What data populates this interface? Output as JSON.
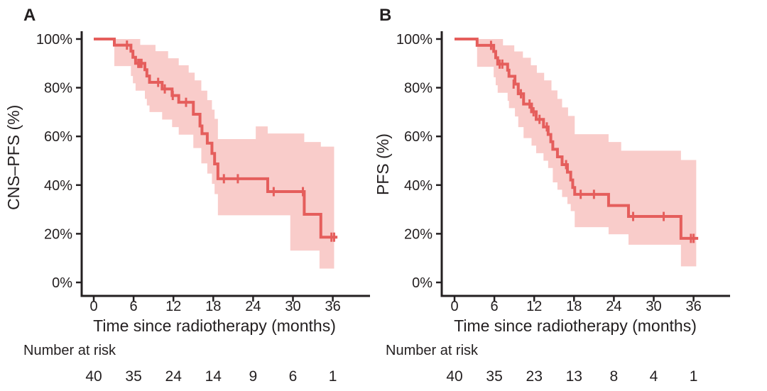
{
  "figure": {
    "background": "#ffffff",
    "colors": {
      "curve": "#E55E5C",
      "ci_band": "#F9CCCA",
      "text": "#231F20",
      "axis": "#231F20"
    }
  },
  "panels": [
    {
      "letter": "A",
      "y_label": "CNS–PFS (%)",
      "x_label": "Time since radiotherapy (months)",
      "risk_label": "Number at risk"
    },
    {
      "letter": "B",
      "y_label": "PFS (%)",
      "x_label": "Time since radiotherapy (months)",
      "risk_label": "Number at risk"
    }
  ],
  "chart_data": [
    {
      "type": "line",
      "subtype": "kaplan-meier-step",
      "panel": "A",
      "title": "",
      "ylabel": "CNS–PFS (%)",
      "xlabel": "Time since radiotherapy (months)",
      "xlim": [
        0,
        38.5
      ],
      "ylim": [
        0,
        100
      ],
      "grid": false,
      "legend": "none",
      "x_ticks": [
        0,
        6,
        12,
        18,
        24,
        30,
        36
      ],
      "y_ticks": [
        100,
        80,
        60,
        40,
        20,
        0
      ],
      "y_tick_labels": [
        "100%",
        "80%",
        "60%",
        "40%",
        "20%",
        "0%"
      ],
      "steps": [
        [
          0,
          100
        ],
        [
          3.1,
          97.5
        ],
        [
          5.6,
          95.0
        ],
        [
          5.9,
          92.5
        ],
        [
          6.3,
          90.0
        ],
        [
          7.7,
          87.4
        ],
        [
          8.0,
          84.8
        ],
        [
          8.4,
          82.2
        ],
        [
          10.3,
          79.5
        ],
        [
          11.8,
          76.8
        ],
        [
          12.8,
          74.0
        ],
        [
          15.0,
          69.1
        ],
        [
          16.0,
          64.3
        ],
        [
          16.3,
          61.1
        ],
        [
          17.1,
          57.2
        ],
        [
          17.8,
          53.0
        ],
        [
          18.2,
          48.7
        ],
        [
          18.7,
          42.6
        ],
        [
          26.2,
          37.3
        ],
        [
          31.7,
          28.0
        ],
        [
          34.2,
          18.6
        ]
      ],
      "end_time": 36.7,
      "censor_marks": [
        [
          5.0,
          97.5
        ],
        [
          6.7,
          90.0
        ],
        [
          6.95,
          90.0
        ],
        [
          7.2,
          90.0
        ],
        [
          9.7,
          82.2
        ],
        [
          10.7,
          79.5
        ],
        [
          11.9,
          76.8
        ],
        [
          13.9,
          74.0
        ],
        [
          19.6,
          42.6
        ],
        [
          21.7,
          42.6
        ],
        [
          27.1,
          37.3
        ],
        [
          31.5,
          37.3
        ],
        [
          35.8,
          18.6
        ],
        [
          36.2,
          18.6
        ]
      ],
      "ci_upper": [
        [
          0,
          100
        ],
        [
          7.0,
          97.6
        ],
        [
          9.3,
          95.0
        ],
        [
          11.2,
          92.1
        ],
        [
          12.8,
          89.2
        ],
        [
          14.3,
          86.2
        ],
        [
          15.2,
          83.0
        ],
        [
          16.2,
          78.8
        ],
        [
          17.1,
          74.9
        ],
        [
          17.8,
          71.0
        ],
        [
          18.2,
          67.2
        ],
        [
          18.7,
          58.9
        ],
        [
          24.4,
          64.1
        ],
        [
          26.2,
          61.2
        ],
        [
          31.7,
          57.7
        ],
        [
          34.2,
          55.8
        ]
      ],
      "ci_lower": [
        [
          0,
          100
        ],
        [
          3.1,
          88.9
        ],
        [
          5.6,
          84.8
        ],
        [
          5.9,
          81.8
        ],
        [
          6.3,
          78.8
        ],
        [
          7.7,
          75.4
        ],
        [
          8.0,
          72.7
        ],
        [
          8.4,
          70.0
        ],
        [
          10.3,
          66.9
        ],
        [
          11.8,
          63.8
        ],
        [
          12.8,
          60.7
        ],
        [
          15.0,
          55.2
        ],
        [
          16.2,
          48.9
        ],
        [
          17.1,
          44.7
        ],
        [
          17.8,
          40.5
        ],
        [
          18.2,
          36.3
        ],
        [
          18.7,
          27.6
        ],
        [
          29.6,
          13.1
        ],
        [
          34.0,
          5.7
        ]
      ],
      "ci_end_time": 36.2,
      "number_at_risk": {
        "times": [
          0,
          6,
          12,
          18,
          24,
          30,
          36
        ],
        "counts": [
          40,
          35,
          24,
          14,
          9,
          6,
          1
        ]
      }
    },
    {
      "type": "line",
      "subtype": "kaplan-meier-step",
      "panel": "B",
      "title": "",
      "ylabel": "PFS (%)",
      "xlabel": "Time since radiotherapy (months)",
      "xlim": [
        0,
        38.5
      ],
      "ylim": [
        0,
        100
      ],
      "grid": false,
      "legend": "none",
      "x_ticks": [
        0,
        6,
        12,
        18,
        24,
        30,
        36
      ],
      "y_ticks": [
        100,
        80,
        60,
        40,
        20,
        0
      ],
      "y_tick_labels": [
        "100%",
        "80%",
        "60%",
        "40%",
        "20%",
        "0%"
      ],
      "steps": [
        [
          0,
          100
        ],
        [
          3.4,
          97.4
        ],
        [
          5.9,
          94.9
        ],
        [
          6.2,
          92.3
        ],
        [
          6.5,
          89.7
        ],
        [
          8.0,
          87.2
        ],
        [
          8.2,
          84.7
        ],
        [
          9.1,
          81.5
        ],
        [
          9.6,
          77.5
        ],
        [
          10.4,
          73.3
        ],
        [
          11.6,
          70.1
        ],
        [
          12.3,
          67.0
        ],
        [
          13.4,
          63.9
        ],
        [
          14.1,
          60.8
        ],
        [
          14.5,
          57.8
        ],
        [
          14.8,
          54.7
        ],
        [
          15.5,
          51.6
        ],
        [
          16.2,
          48.4
        ],
        [
          17.0,
          45.3
        ],
        [
          17.5,
          42.1
        ],
        [
          17.8,
          39.0
        ],
        [
          18.1,
          36.2
        ],
        [
          23.2,
          31.6
        ],
        [
          26.2,
          27.1
        ],
        [
          34.1,
          18.1
        ]
      ],
      "end_time": 36.7,
      "censor_marks": [
        [
          5.5,
          97.4
        ],
        [
          6.8,
          89.7
        ],
        [
          7.2,
          89.7
        ],
        [
          8.9,
          81.5
        ],
        [
          10.0,
          77.5
        ],
        [
          11.3,
          73.3
        ],
        [
          11.9,
          70.1
        ],
        [
          12.8,
          67.0
        ],
        [
          13.9,
          63.9
        ],
        [
          16.8,
          48.4
        ],
        [
          19.0,
          36.2
        ],
        [
          21.0,
          36.2
        ],
        [
          26.9,
          27.1
        ],
        [
          31.5,
          27.1
        ],
        [
          35.6,
          18.1
        ],
        [
          36.0,
          18.1
        ]
      ],
      "ci_upper": [
        [
          0,
          100
        ],
        [
          7.3,
          97.4
        ],
        [
          9.0,
          94.9
        ],
        [
          10.3,
          92.3
        ],
        [
          11.5,
          89.2
        ],
        [
          12.4,
          86.1
        ],
        [
          13.5,
          83.0
        ],
        [
          14.6,
          78.9
        ],
        [
          15.5,
          75.4
        ],
        [
          16.2,
          71.9
        ],
        [
          17.1,
          68.4
        ],
        [
          18.1,
          60.9
        ],
        [
          23.2,
          57.7
        ],
        [
          25.1,
          54.1
        ],
        [
          34.1,
          50.3
        ]
      ],
      "ci_lower": [
        [
          0,
          100
        ],
        [
          3.4,
          88.6
        ],
        [
          5.9,
          84.3
        ],
        [
          6.2,
          81.0
        ],
        [
          6.5,
          77.9
        ],
        [
          8.0,
          74.6
        ],
        [
          8.2,
          71.6
        ],
        [
          9.1,
          68.2
        ],
        [
          9.6,
          63.8
        ],
        [
          10.4,
          59.3
        ],
        [
          11.6,
          56.2
        ],
        [
          12.3,
          53.1
        ],
        [
          13.4,
          50.0
        ],
        [
          14.1,
          47.0
        ],
        [
          14.8,
          41.1
        ],
        [
          15.5,
          38.1
        ],
        [
          16.2,
          35.1
        ],
        [
          17.0,
          32.2
        ],
        [
          17.5,
          29.3
        ],
        [
          18.1,
          22.7
        ],
        [
          23.2,
          19.8
        ],
        [
          26.2,
          15.5
        ],
        [
          34.1,
          6.6
        ]
      ],
      "ci_end_time": 36.4,
      "number_at_risk": {
        "times": [
          0,
          6,
          12,
          18,
          24,
          30,
          36
        ],
        "counts": [
          40,
          35,
          23,
          13,
          8,
          4,
          1
        ]
      }
    }
  ]
}
